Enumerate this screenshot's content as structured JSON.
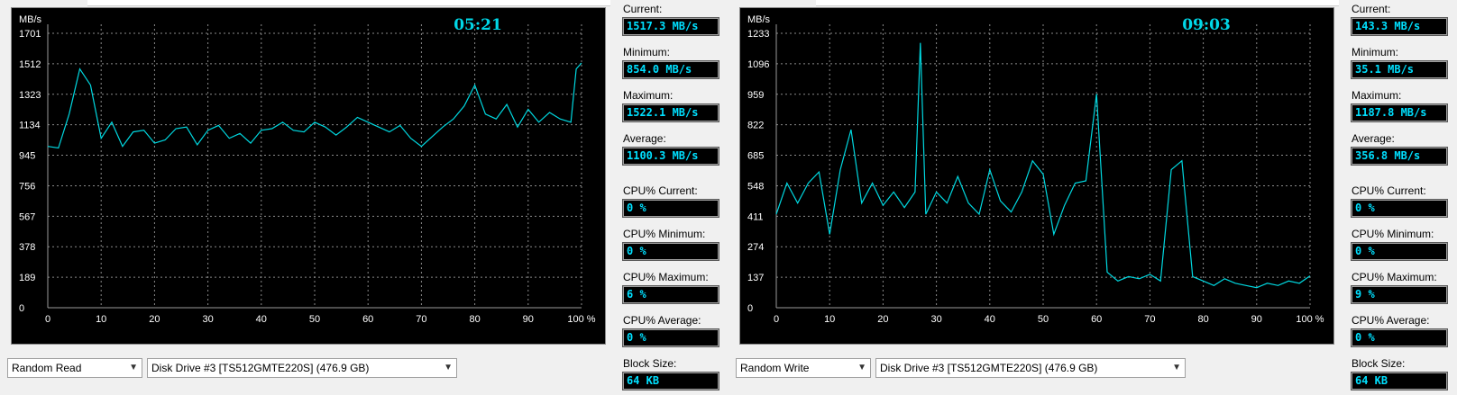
{
  "panels": [
    {
      "id": "left",
      "clock": "05:21",
      "y_unit": "MB/s",
      "stats": {
        "current_label": "Current:",
        "current": "1517.3 MB/s",
        "minimum_label": "Minimum:",
        "minimum": "854.0 MB/s",
        "maximum_label": "Maximum:",
        "maximum": "1522.1 MB/s",
        "average_label": "Average:",
        "average": "1100.3 MB/s",
        "cpu_current_label": "CPU% Current:",
        "cpu_current": "0 %",
        "cpu_minimum_label": "CPU% Minimum:",
        "cpu_minimum": "0 %",
        "cpu_maximum_label": "CPU% Maximum:",
        "cpu_maximum": "6 %",
        "cpu_average_label": "CPU% Average:",
        "cpu_average": "0 %",
        "block_size_label": "Block Size:",
        "block_size": "64 KB"
      },
      "test_mode": "Random Read",
      "drive": "Disk Drive #3  [TS512GMTE220S]  (476.9 GB)"
    },
    {
      "id": "right",
      "clock": "09:03",
      "y_unit": "MB/s",
      "stats": {
        "current_label": "Current:",
        "current": "143.3 MB/s",
        "minimum_label": "Minimum:",
        "minimum": "35.1 MB/s",
        "maximum_label": "Maximum:",
        "maximum": "1187.8 MB/s",
        "average_label": "Average:",
        "average": "356.8 MB/s",
        "cpu_current_label": "CPU% Current:",
        "cpu_current": "0 %",
        "cpu_minimum_label": "CPU% Minimum:",
        "cpu_minimum": "0 %",
        "cpu_maximum_label": "CPU% Maximum:",
        "cpu_maximum": "9 %",
        "cpu_average_label": "CPU% Average:",
        "cpu_average": "0 %",
        "block_size_label": "Block Size:",
        "block_size": "64 KB"
      },
      "test_mode": "Random Write",
      "drive": "Disk Drive #3  [TS512GMTE220S]  (476.9 GB)"
    }
  ],
  "chart_data": [
    {
      "type": "line",
      "ylabel": "MB/s",
      "y_ticks": [
        0,
        189,
        378,
        567,
        756,
        945,
        1134,
        1323,
        1512,
        1701
      ],
      "x_ticks": [
        "0",
        "10",
        "20",
        "30",
        "40",
        "50",
        "60",
        "70",
        "80",
        "90",
        "100 %"
      ],
      "xlim": [
        0,
        100
      ],
      "ylim": [
        0,
        1701
      ],
      "line_color": "#00d8e0",
      "series": [
        {
          "x": [
            0,
            2,
            4,
            6,
            8,
            10,
            12,
            14,
            16,
            18,
            20,
            22,
            24,
            26,
            28,
            30,
            32,
            34,
            36,
            38,
            40,
            42,
            44,
            46,
            48,
            50,
            52,
            54,
            56,
            58,
            60,
            62,
            64,
            66,
            68,
            70,
            72,
            74,
            76,
            78,
            80,
            82,
            84,
            86,
            88,
            90,
            92,
            94,
            96,
            98,
            99,
            100
          ],
          "y": [
            1000,
            990,
            1200,
            1480,
            1380,
            1050,
            1150,
            1000,
            1090,
            1100,
            1020,
            1040,
            1110,
            1120,
            1010,
            1100,
            1130,
            1050,
            1080,
            1020,
            1100,
            1110,
            1150,
            1100,
            1090,
            1150,
            1120,
            1070,
            1120,
            1180,
            1150,
            1120,
            1090,
            1130,
            1050,
            1000,
            1060,
            1120,
            1170,
            1250,
            1380,
            1200,
            1170,
            1260,
            1120,
            1230,
            1150,
            1210,
            1170,
            1150,
            1480,
            1517
          ]
        }
      ]
    },
    {
      "type": "line",
      "ylabel": "MB/s",
      "y_ticks": [
        0,
        137,
        274,
        411,
        548,
        685,
        822,
        959,
        1096,
        1233
      ],
      "x_ticks": [
        "0",
        "10",
        "20",
        "30",
        "40",
        "50",
        "60",
        "70",
        "80",
        "90",
        "100 %"
      ],
      "xlim": [
        0,
        100
      ],
      "ylim": [
        0,
        1233
      ],
      "line_color": "#00d8e0",
      "series": [
        {
          "x": [
            0,
            2,
            4,
            6,
            8,
            10,
            12,
            14,
            16,
            18,
            20,
            22,
            24,
            26,
            27,
            28,
            30,
            32,
            34,
            36,
            38,
            40,
            42,
            44,
            46,
            48,
            50,
            52,
            54,
            56,
            58,
            60,
            62,
            64,
            66,
            68,
            70,
            72,
            74,
            76,
            78,
            80,
            82,
            84,
            86,
            88,
            90,
            92,
            94,
            96,
            98,
            100
          ],
          "y": [
            420,
            560,
            470,
            560,
            610,
            330,
            620,
            800,
            470,
            560,
            460,
            520,
            450,
            520,
            1190,
            420,
            520,
            470,
            590,
            470,
            420,
            620,
            480,
            430,
            520,
            660,
            600,
            330,
            460,
            560,
            570,
            960,
            160,
            120,
            140,
            130,
            150,
            120,
            620,
            660,
            140,
            120,
            100,
            130,
            110,
            100,
            90,
            110,
            100,
            120,
            110,
            143
          ]
        }
      ]
    }
  ]
}
